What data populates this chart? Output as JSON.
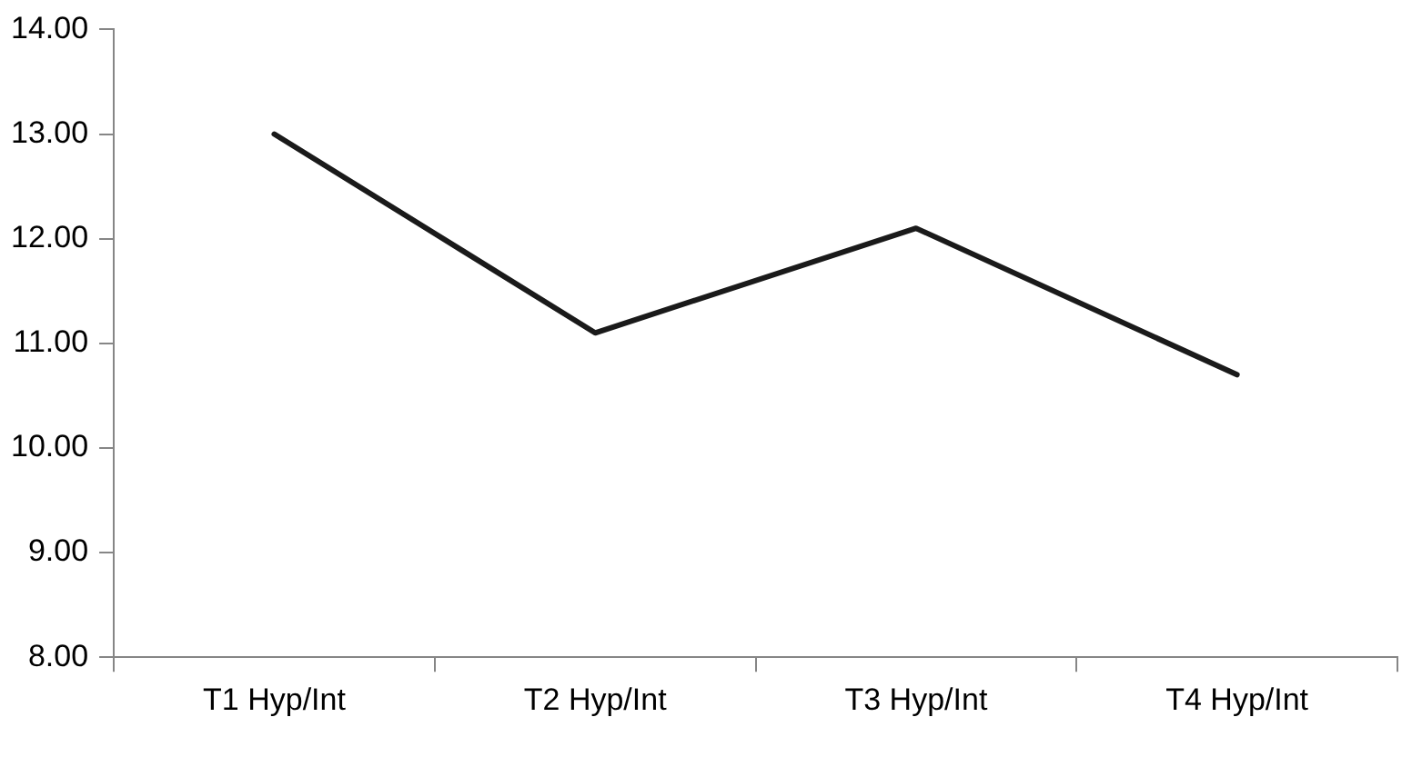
{
  "chart_data": {
    "type": "line",
    "categories": [
      "T1 Hyp/Int",
      "T2 Hyp/Int",
      "T3 Hyp/Int",
      "T4 Hyp/Int"
    ],
    "series": [
      {
        "color": "#1a1a1a",
        "values": [
          13.0,
          11.1,
          12.1,
          10.7
        ]
      }
    ],
    "ylim": [
      8,
      14
    ],
    "yticks": [
      {
        "value": 8,
        "label": "8.00"
      },
      {
        "value": 9,
        "label": "9.00"
      },
      {
        "value": 10,
        "label": "10.00"
      },
      {
        "value": 11,
        "label": "11.00"
      },
      {
        "value": 12,
        "label": "12.00"
      },
      {
        "value": 13,
        "label": "13.00"
      },
      {
        "value": 14,
        "label": "14.00"
      }
    ],
    "grid": false,
    "legend": false,
    "marker": "none",
    "line_style": "solid"
  }
}
